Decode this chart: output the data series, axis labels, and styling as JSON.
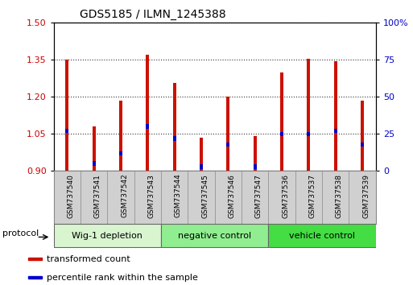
{
  "title": "GDS5185 / ILMN_1245388",
  "samples": [
    "GSM737540",
    "GSM737541",
    "GSM737542",
    "GSM737543",
    "GSM737544",
    "GSM737545",
    "GSM737546",
    "GSM737547",
    "GSM737536",
    "GSM737537",
    "GSM737538",
    "GSM737539"
  ],
  "transformed_count": [
    1.35,
    1.08,
    1.185,
    1.37,
    1.255,
    1.035,
    1.2,
    1.04,
    1.3,
    1.355,
    1.345,
    1.185
  ],
  "percentile_rank": [
    27,
    5,
    12,
    30,
    22,
    3,
    18,
    3,
    25,
    25,
    27,
    18
  ],
  "baseline": 0.9,
  "ylim_left": [
    0.9,
    1.5
  ],
  "ylim_right": [
    0,
    100
  ],
  "yticks_left": [
    0.9,
    1.05,
    1.2,
    1.35,
    1.5
  ],
  "yticks_right": [
    0,
    25,
    50,
    75,
    100
  ],
  "ytick_labels_right": [
    "0",
    "25",
    "50",
    "75",
    "100%"
  ],
  "groups": [
    {
      "label": "Wig-1 depletion",
      "start": 0,
      "end": 4,
      "color": "#d8f5d0"
    },
    {
      "label": "negative control",
      "start": 4,
      "end": 8,
      "color": "#90ee90"
    },
    {
      "label": "vehicle control",
      "start": 8,
      "end": 12,
      "color": "#44dd44"
    }
  ],
  "bar_color": "#cc1100",
  "blue_color": "#0000cc",
  "bar_width": 0.12,
  "tick_label_color_left": "#cc0000",
  "tick_label_color_right": "#0000cc",
  "protocol_label": "protocol",
  "legend_items": [
    "transformed count",
    "percentile rank within the sample"
  ],
  "legend_colors": [
    "#cc1100",
    "#0000cc"
  ],
  "background_color": "#ffffff",
  "plot_bg_color": "#ffffff",
  "grid_color": "#000000",
  "xlabel_area_color": "#d0d0d0"
}
